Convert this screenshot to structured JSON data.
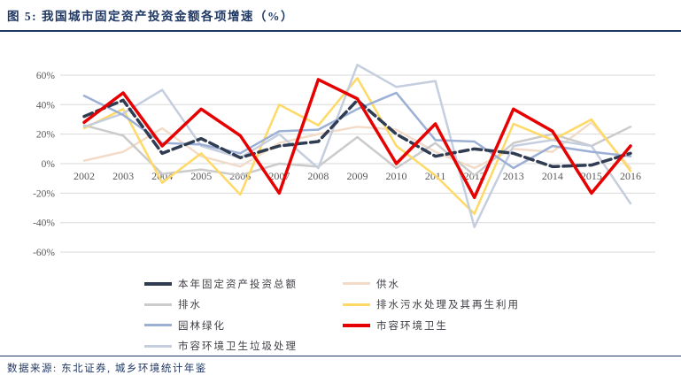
{
  "header": {
    "title": "图 5: 我国城市固定资产投资金额各项增速（%）"
  },
  "footer": {
    "source": "数据来源: 东北证券, 城乡环境统计年鉴"
  },
  "colors": {
    "accent_navy": "#1F3864",
    "grid": "#D9D9D9",
    "tick_label": "#595959",
    "legend_label": "#3F3F46",
    "background": "#FFFFFF"
  },
  "chart_data": {
    "type": "line",
    "title": "我国城市固定资产投资金额各项增速（%）",
    "categories": [
      "2002",
      "2003",
      "2004",
      "2005",
      "2006",
      "2007",
      "2008",
      "2009",
      "2010",
      "2011",
      "2012",
      "2013",
      "2014",
      "2015",
      "2016"
    ],
    "xlabel": "",
    "ylabel": "",
    "ylim": [
      -60,
      60
    ],
    "ytick_step": 20,
    "ytick_labels": [
      "60%",
      "40%",
      "20%",
      "0%",
      "-20%",
      "-40%",
      "-60%"
    ],
    "grid": true,
    "legend_position": "bottom",
    "series": [
      {
        "name": "本年固定资产投资总额",
        "color": "#303C52",
        "line_width": 3.5,
        "dash": "10 5",
        "values": [
          32,
          43,
          7,
          17,
          4,
          12,
          15,
          43,
          20,
          5,
          10,
          7,
          -2,
          -1,
          7
        ]
      },
      {
        "name": "供水",
        "color": "#F2DCC9",
        "line_width": 2.5,
        "dash": "",
        "values": [
          2,
          8,
          24,
          5,
          -2,
          14,
          20,
          25,
          23,
          8,
          -3,
          10,
          8,
          28,
          -3
        ]
      },
      {
        "name": "排水",
        "color": "#CBCBCB",
        "line_width": 2.5,
        "dash": "",
        "values": [
          26,
          19,
          -7,
          -4,
          -8,
          0,
          -2,
          18,
          -3,
          14,
          -8,
          14,
          20,
          12,
          25
        ]
      },
      {
        "name": "排水污水处理及其再生利用",
        "color": "#FFD966",
        "line_width": 2.5,
        "dash": "",
        "values": [
          24,
          37,
          -13,
          7,
          -21,
          40,
          26,
          58,
          12,
          -8,
          -34,
          27,
          16,
          30,
          -5
        ]
      },
      {
        "name": "园林绿化",
        "color": "#9CB0D6",
        "line_width": 2.5,
        "dash": "",
        "values": [
          46,
          33,
          14,
          13,
          7,
          22,
          23,
          37,
          48,
          16,
          15,
          -3,
          12,
          8,
          5
        ]
      },
      {
        "name": "市容环境卫生",
        "color": "#E60000",
        "line_width": 3.5,
        "dash": "",
        "values": [
          28,
          48,
          12,
          37,
          19,
          -20,
          57,
          44,
          0,
          27,
          -23,
          37,
          22,
          -20,
          12
        ]
      },
      {
        "name": "市容环境卫生垃圾处理",
        "color": "#C4CEDF",
        "line_width": 2.5,
        "dash": "",
        "values": [
          25,
          34,
          50,
          12,
          4,
          20,
          -3,
          67,
          52,
          56,
          -43,
          12,
          16,
          12,
          -27
        ]
      }
    ]
  }
}
